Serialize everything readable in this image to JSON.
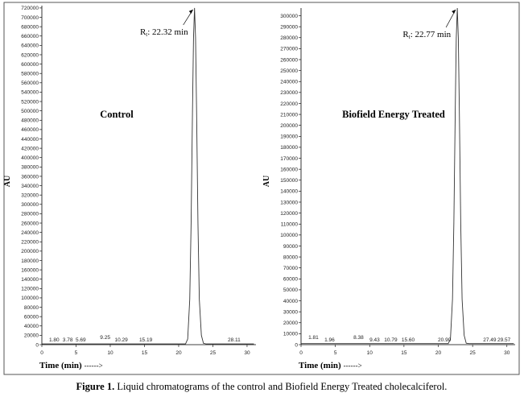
{
  "chart_data": [
    {
      "type": "line",
      "label": "Control",
      "y_label": "AU",
      "x_label": "Time (min)",
      "x_label_arrow": "------>",
      "peak_annotation": {
        "prefix": "R",
        "subscript": "t",
        "text": ": 22.32 min"
      },
      "x": [
        0,
        21.0,
        21.32,
        21.62,
        21.82,
        22.02,
        22.17,
        22.32,
        22.47,
        22.62,
        22.82,
        23.02,
        23.32,
        23.62,
        24.02,
        31
      ],
      "values": [
        1500,
        1500,
        12000,
        97000,
        260000,
        499000,
        656000,
        720000,
        656000,
        499000,
        260000,
        97000,
        20000,
        3000,
        1500,
        1500
      ],
      "color": "#333333",
      "peak_labels": [
        {
          "value": 1.8,
          "label": "1.80"
        },
        {
          "value": 3.78,
          "label": "3.78"
        },
        {
          "value": 5.69,
          "label": "5.69"
        },
        {
          "value": 9.25,
          "label": "9.25"
        },
        {
          "value": 10.29,
          "label": "10.29"
        },
        {
          "value": 15.19,
          "label": "15.19"
        },
        {
          "value": 28.11,
          "label": "28.11"
        }
      ],
      "xlim": [
        0,
        31.3
      ],
      "xticks": [
        0,
        5,
        10,
        15,
        20,
        25,
        30
      ],
      "ylim": [
        0,
        725000
      ],
      "yticks": [
        0,
        20000,
        40000,
        60000,
        80000,
        100000,
        120000,
        140000,
        160000,
        180000,
        200000,
        220000,
        240000,
        260000,
        280000,
        300000,
        320000,
        340000,
        360000,
        380000,
        400000,
        420000,
        440000,
        460000,
        480000,
        500000,
        520000,
        540000,
        560000,
        580000,
        600000,
        620000,
        640000,
        660000,
        680000,
        700000,
        720000
      ]
    },
    {
      "type": "line",
      "label": "Biofield Energy Treated",
      "y_label": "AU",
      "x_label": "Time (min)",
      "x_label_arrow": "------>",
      "peak_annotation": {
        "prefix": "R",
        "subscript": "t",
        "text": ": 22.77 min"
      },
      "x": [
        0,
        21.45,
        21.77,
        22.07,
        22.27,
        22.47,
        22.62,
        22.77,
        22.92,
        23.07,
        23.27,
        23.47,
        23.77,
        24.07,
        24.47,
        31
      ],
      "values": [
        1000,
        1000,
        5100,
        41400,
        110900,
        212800,
        279700,
        307000,
        279700,
        212800,
        110900,
        41400,
        8500,
        1300,
        1000,
        1000
      ],
      "color": "#333333",
      "peak_labels": [
        {
          "value": 1.81,
          "label": "1.81"
        },
        {
          "value": 1.96,
          "label": "1.96"
        },
        {
          "value": 8.38,
          "label": "8.38"
        },
        {
          "value": 9.43,
          "label": "9.43"
        },
        {
          "value": 10.79,
          "label": "10.79"
        },
        {
          "value": 15.6,
          "label": "15.60"
        },
        {
          "value": 20.9,
          "label": "20.90"
        },
        {
          "value": 27.49,
          "label": "27.49"
        },
        {
          "value": 29.57,
          "label": "29.57"
        }
      ],
      "xlim": [
        0,
        31.2
      ],
      "xticks": [
        0,
        5,
        10,
        15,
        20,
        25,
        30
      ],
      "ylim": [
        0,
        307000
      ],
      "yticks": [
        0,
        10000,
        20000,
        30000,
        40000,
        50000,
        60000,
        70000,
        80000,
        90000,
        100000,
        110000,
        120000,
        130000,
        140000,
        150000,
        160000,
        170000,
        180000,
        190000,
        200000,
        210000,
        220000,
        230000,
        240000,
        250000,
        260000,
        270000,
        280000,
        290000,
        300000
      ]
    }
  ],
  "caption": {
    "label": "Figure 1.",
    "text": " Liquid chromatograms of the control and Biofield Energy Treated cholecalciferol."
  }
}
